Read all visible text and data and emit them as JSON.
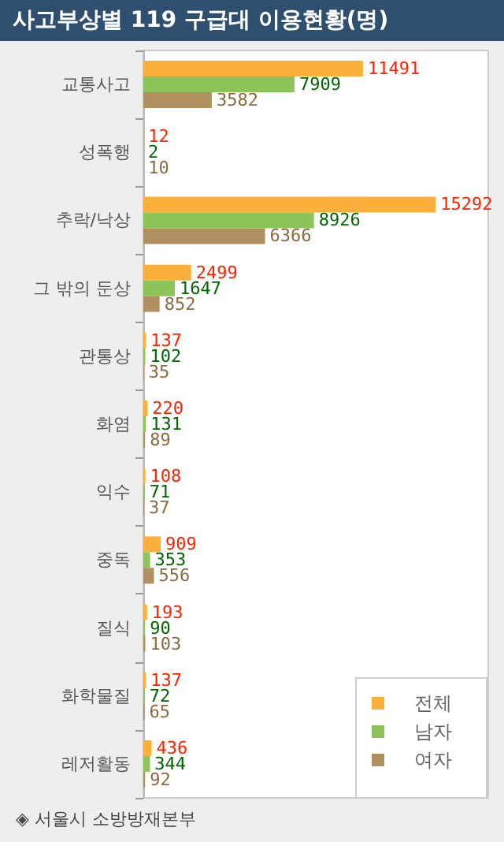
{
  "chart_data": {
    "type": "bar",
    "orientation": "horizontal",
    "title": "사고부상별 119 구급대 이용현황(명)",
    "categories": [
      "교통사고",
      "성폭행",
      "추락/낙상",
      "그 밖의 둔상",
      "관통상",
      "화염",
      "익수",
      "중독",
      "질식",
      "화학물질",
      "레저활동"
    ],
    "series": [
      {
        "name": "전체",
        "color": "#fbb03b",
        "values": [
          11491,
          12,
          15292,
          2499,
          137,
          220,
          108,
          909,
          193,
          137,
          436
        ]
      },
      {
        "name": "남자",
        "color": "#8cc45a",
        "values": [
          7909,
          2,
          8926,
          1647,
          102,
          131,
          71,
          353,
          90,
          72,
          344
        ]
      },
      {
        "name": "여자",
        "color": "#b0905e",
        "values": [
          3582,
          10,
          6366,
          852,
          35,
          89,
          37,
          556,
          103,
          65,
          92
        ]
      }
    ],
    "data_labels": true,
    "legend": "bottom right",
    "grid": false,
    "annotations": [
      "◈ 서울시 소방방재본부"
    ]
  }
}
